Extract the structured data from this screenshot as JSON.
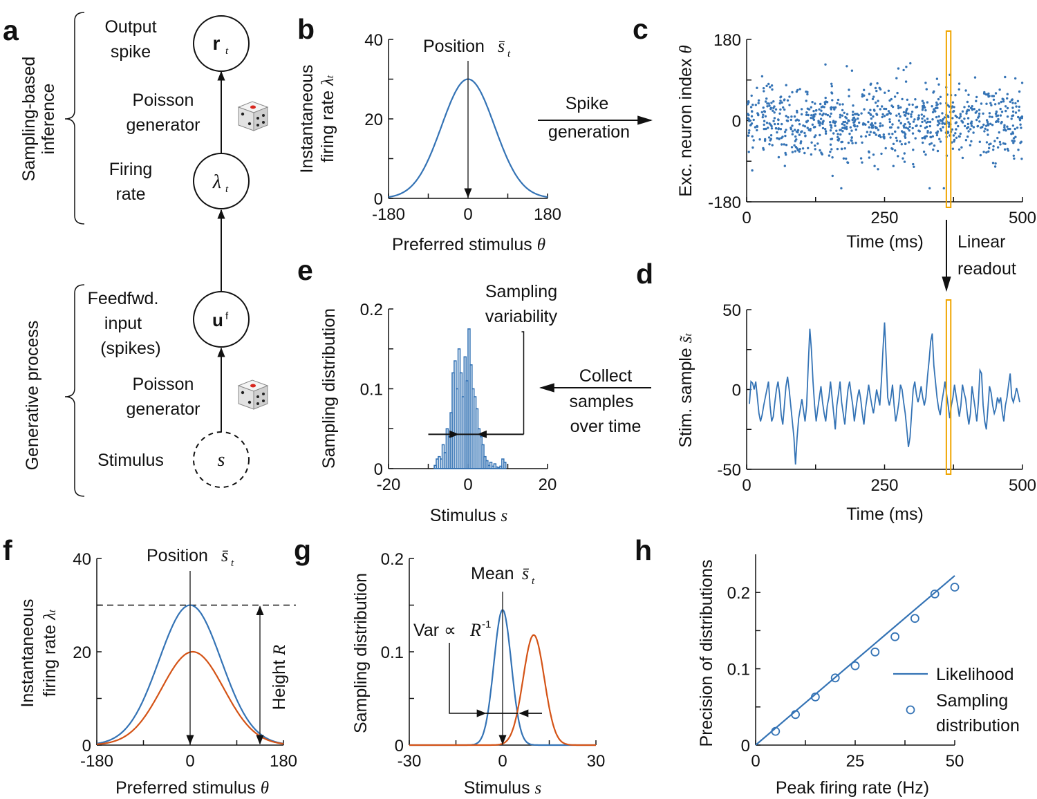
{
  "panel_letters": {
    "a": "a",
    "b": "b",
    "c": "c",
    "d": "d",
    "e": "e",
    "f": "f",
    "g": "g",
    "h": "h"
  },
  "colors": {
    "blue": "#3473b5",
    "orange": "#d45316",
    "highlight": "#f0a500",
    "ink": "#111111"
  },
  "panel_a": {
    "brace_top": {
      "line1": "Sampling-based",
      "line2": "inference"
    },
    "brace_bottom": "Generative process",
    "labels": {
      "output1": "Output",
      "output2": "spike",
      "poisson1a": "Poisson",
      "poisson1b": "generator",
      "firing1": "Firing",
      "firing2": "rate",
      "ff1": "Feedfwd.",
      "ff2": "input",
      "ff3": "(spikes)",
      "poisson2a": "Poisson",
      "poisson2b": "generator",
      "stimulus": "Stimulus"
    },
    "nodes": {
      "r": "r",
      "r_sub": "t",
      "lambda": "λ",
      "lambda_sub": "t",
      "u": "u",
      "u_sup": "f",
      "s": "s"
    }
  },
  "panel_b": {
    "annotation": "Position",
    "annotation_sym": "s̄",
    "annotation_sub": "t",
    "arrow_label1": "Spike",
    "arrow_label2": "generation"
  },
  "panel_c": {
    "arrow_label1": "Linear",
    "arrow_label2": "readout"
  },
  "panel_e": {
    "annotation1": "Sampling",
    "annotation2": "variability",
    "arrow_label1": "Collect",
    "arrow_label2": "samples",
    "arrow_label3": "over time"
  },
  "panel_f": {
    "annotation": "Position",
    "annotation_sym": "s̄",
    "annotation_sub": "t",
    "height_label": "Height",
    "height_sym": "R"
  },
  "panel_g": {
    "mean_label": "Mean",
    "mean_sym": "s̄",
    "mean_sub": "t",
    "var_label": "Var ∝",
    "var_sym": "R",
    "var_sup": "-1"
  },
  "chart_data": [
    {
      "id": "b",
      "type": "line",
      "title": "",
      "xlabel": "Preferred stimulus",
      "xlabel_sym": "θ",
      "ylabel1": "Instantaneous",
      "ylabel2": "firing rate",
      "ylabel_sym": "λ",
      "ylabel_sub": "t",
      "xlim": [
        -180,
        180
      ],
      "ylim": [
        0,
        40
      ],
      "xticks": [
        "-180",
        "0",
        "180"
      ],
      "yticks": [
        "0",
        "20",
        "40"
      ],
      "series": [
        {
          "name": "tuning",
          "color": "#3473b5",
          "shape": "gaussian",
          "peak": 30,
          "center": 0,
          "sigma": 60
        }
      ]
    },
    {
      "id": "c",
      "type": "scatter",
      "xlabel": "Time (ms)",
      "ylabel": "Exc. neuron index",
      "ylabel_sym": "θ",
      "xlim": [
        0,
        500
      ],
      "ylim": [
        -180,
        180
      ],
      "xticks": [
        "0",
        "250",
        "500"
      ],
      "yticks": [
        "-180",
        "0",
        "180"
      ],
      "points_count": 900,
      "points_mean": 0,
      "points_sd": 40,
      "highlight_window_ms": [
        362,
        370
      ]
    },
    {
      "id": "d",
      "type": "line",
      "xlabel": "Time (ms)",
      "ylabel": "Stim. sample",
      "ylabel_sym": "s̃",
      "ylabel_sub": "t",
      "xlim": [
        0,
        500
      ],
      "ylim": [
        -50,
        50
      ],
      "xticks": [
        "0",
        "250",
        "500"
      ],
      "yticks": [
        "-50",
        "0",
        "50"
      ],
      "values": [
        -9,
        5,
        4,
        0,
        5,
        -5,
        -15,
        -20,
        -16,
        -10,
        -5,
        0,
        5,
        -10,
        -20,
        -17,
        -8,
        0,
        5,
        -3,
        -16,
        -22,
        -10,
        2,
        8,
        0,
        -10,
        -20,
        -30,
        -47,
        -30,
        -18,
        -12,
        -6,
        -13,
        -20,
        -10,
        15,
        38,
        25,
        5,
        -10,
        -20,
        -12,
        -5,
        2,
        -8,
        -15,
        -20,
        -10,
        -5,
        5,
        -5,
        -15,
        -25,
        -10,
        -3,
        5,
        -8,
        -15,
        -22,
        -10,
        0,
        5,
        -3,
        -10,
        -20,
        -12,
        -5,
        0,
        -6,
        -15,
        -22,
        -12,
        -5,
        3,
        -4,
        -10,
        -15,
        -8,
        0,
        -5,
        -10,
        5,
        25,
        42,
        20,
        -5,
        -10,
        -5,
        3,
        -10,
        -20,
        -15,
        -8,
        3,
        0,
        -8,
        -15,
        -25,
        -36,
        -30,
        -15,
        0,
        5,
        -3,
        -8,
        -4,
        2,
        -5,
        -10,
        -5,
        8,
        18,
        30,
        35,
        15,
        5,
        -5,
        -12,
        -16,
        -8,
        -2,
        5,
        -3,
        -10,
        -18,
        -10,
        -5,
        3,
        -4,
        -10,
        -17,
        -10,
        3,
        -2,
        -6,
        -15,
        -22,
        -15,
        2,
        -5,
        -12,
        -20,
        -8,
        12,
        10,
        -10,
        -20,
        -25,
        -12,
        2,
        -2,
        -10,
        -15,
        -12,
        -5,
        -8,
        -5,
        -14,
        -20,
        -10,
        -5,
        3,
        10,
        -5,
        -8,
        -4,
        1,
        -3,
        -8
      ],
      "highlight_window_ms": [
        362,
        370
      ]
    },
    {
      "id": "e",
      "type": "bar",
      "xlabel": "Stimulus",
      "xlabel_sym": "s",
      "ylabel": "Sampling distribution",
      "xlim": [
        -20,
        20
      ],
      "ylim": [
        0,
        0.2
      ],
      "xticks": [
        "-20",
        "0",
        "20"
      ],
      "yticks": [
        "0",
        "0.1",
        "0.2"
      ],
      "bin_edges_start": -8.5,
      "bin_width": 0.5,
      "values": [
        0.004,
        0.012,
        0.015,
        0.012,
        0.03,
        0.02,
        0.05,
        0.04,
        0.07,
        0.12,
        0.135,
        0.1,
        0.15,
        0.12,
        0.09,
        0.14,
        0.11,
        0.175,
        0.13,
        0.1,
        0.09,
        0.075,
        0.05,
        0.04,
        0.03,
        0.015,
        0.01,
        0.004,
        0.008,
        0.003,
        0.006,
        0.002,
        0.001,
        0.003,
        0.012,
        0.008
      ],
      "variability_half_width": 2.5
    },
    {
      "id": "f",
      "type": "line",
      "xlabel": "Preferred stimulus",
      "xlabel_sym": "θ",
      "ylabel1": "Instantaneous",
      "ylabel2": "firing rate",
      "ylabel_sym": "λ",
      "ylabel_sub": "t",
      "xlim": [
        -180,
        180
      ],
      "ylim": [
        0,
        40
      ],
      "xticks": [
        "-180",
        "0",
        "180"
      ],
      "yticks": [
        "0",
        "20",
        "40"
      ],
      "series": [
        {
          "name": "high rate",
          "color": "#3473b5",
          "shape": "gaussian",
          "peak": 30,
          "center": 0,
          "sigma": 60
        },
        {
          "name": "low rate",
          "color": "#d45316",
          "shape": "gaussian",
          "peak": 20,
          "center": 5,
          "sigma": 60
        }
      ],
      "reference_line": 30
    },
    {
      "id": "g",
      "type": "line",
      "xlabel": "Stimulus",
      "xlabel_sym": "s",
      "ylabel": "Sampling distribution",
      "xlim": [
        -30,
        30
      ],
      "ylim": [
        0,
        0.2
      ],
      "xticks": [
        "-30",
        "0",
        "30"
      ],
      "yticks": [
        "0",
        "0.1",
        "0.2"
      ],
      "series": [
        {
          "name": "blue",
          "color": "#3473b5",
          "shape": "gaussian",
          "peak": 0.145,
          "center": 0,
          "sigma": 2.8
        },
        {
          "name": "orange",
          "color": "#d45316",
          "shape": "gaussian",
          "peak": 0.118,
          "center": 10,
          "sigma": 3.4
        }
      ]
    },
    {
      "id": "h",
      "type": "scatter",
      "xlabel": "Peak firing rate (Hz)",
      "ylabel": "Precision of distributions",
      "xlim": [
        0,
        50
      ],
      "ylim": [
        0,
        0.25
      ],
      "xticks": [
        "0",
        "25",
        "50"
      ],
      "yticks": [
        "0",
        "0.1",
        "0.2"
      ],
      "line": {
        "name": "Likelihood",
        "points": [
          [
            0,
            0
          ],
          [
            50,
            0.222
          ]
        ]
      },
      "points": {
        "name": "Sampling distribution",
        "x": [
          5,
          10,
          15,
          20,
          25,
          30,
          35,
          40,
          45,
          50
        ],
        "y": [
          0.018,
          0.04,
          0.063,
          0.088,
          0.104,
          0.122,
          0.142,
          0.166,
          0.198,
          0.207
        ]
      },
      "legend": {
        "line": "Likelihood",
        "points1": "Sampling",
        "points2": "distribution",
        "position": "right"
      }
    }
  ]
}
